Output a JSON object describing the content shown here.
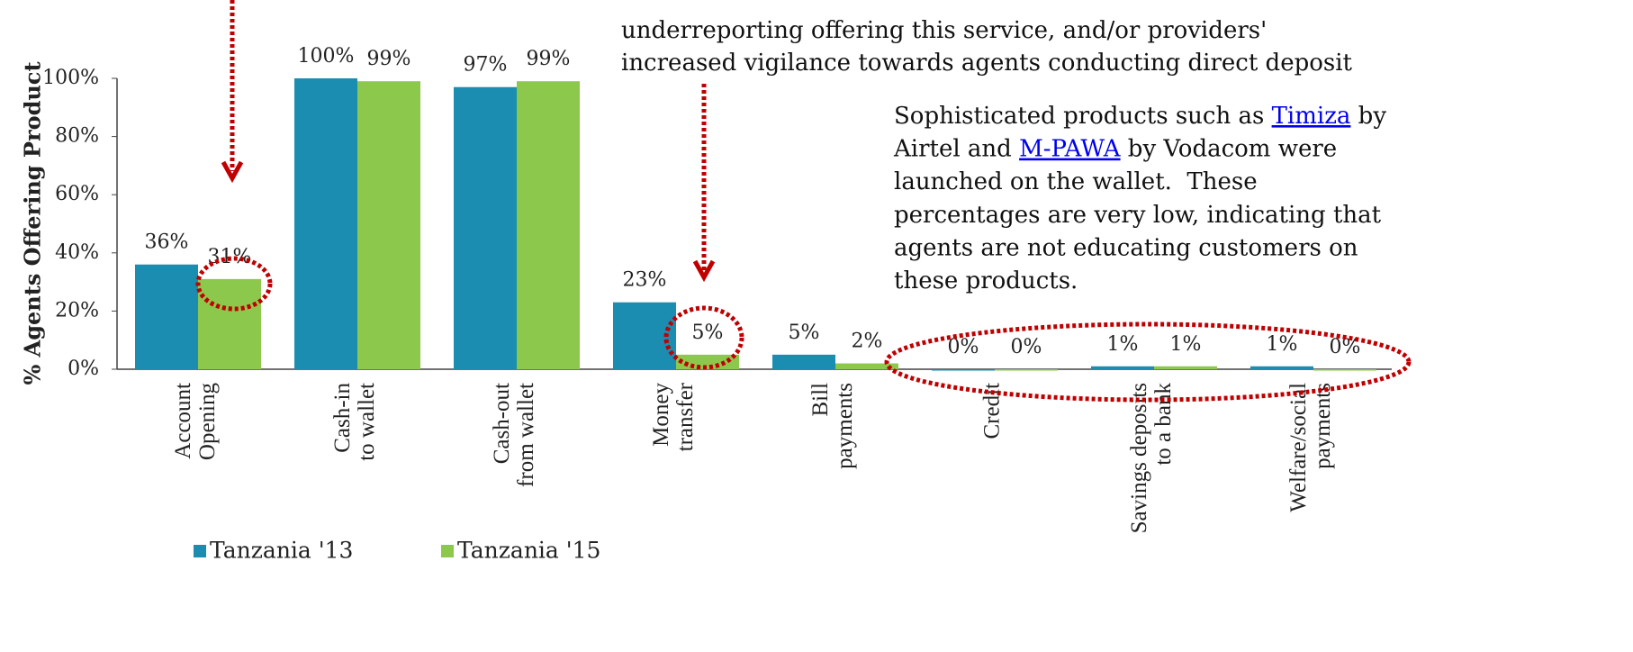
{
  "chart_data": {
    "type": "bar",
    "y_label": "% Agents Offering Product",
    "categories": [
      "Account\nOpening",
      "Cash-in\nto wallet",
      "Cash-out\nfrom wallet",
      "Money\ntransfer",
      "Bill\npayments",
      "Credit",
      "Savings deposits\nto a bank",
      "Welfare/social\npayments"
    ],
    "series": [
      {
        "name": "Tanzania '13",
        "color": "#1a8db0",
        "values": [
          36,
          100,
          97,
          23,
          5,
          0,
          1,
          1
        ],
        "value_labels": [
          "36%",
          "100%",
          "97%",
          "23%",
          "5%",
          "0%",
          "1%",
          "1%"
        ]
      },
      {
        "name": "Tanzania '15",
        "color": "#8cc84b",
        "values": [
          31,
          99,
          99,
          5,
          2,
          0,
          1,
          0
        ],
        "value_labels": [
          "31%",
          "99%",
          "99%",
          "5%",
          "2%",
          "0%",
          "1%",
          "0%"
        ]
      }
    ],
    "ylim": [
      0,
      100
    ],
    "yticks": [
      {
        "value": 0,
        "label": "0%"
      },
      {
        "value": 20,
        "label": "20%"
      },
      {
        "value": 40,
        "label": "40%"
      },
      {
        "value": 60,
        "label": "60%"
      },
      {
        "value": 80,
        "label": "80%"
      },
      {
        "value": 100,
        "label": "100%"
      }
    ],
    "legend": "bottom",
    "annotations": [
      {
        "lines": [
          [
            "underreporting offering this service, and/or providers'"
          ],
          [
            "increased vigilance towards agents conducting direct deposit"
          ]
        ]
      },
      {
        "lines": [
          [
            "Sophisticated products such as ",
            {
              "text": "Timiza",
              "link": true
            },
            " by"
          ],
          [
            "Airtel and ",
            {
              "text": "M-PAWA",
              "link": true
            },
            " by Vodacom were"
          ],
          [
            "launched on the wallet.  These"
          ],
          [
            "percentages are very low, indicating that"
          ],
          [
            "agents are not educating customers on"
          ],
          [
            "these products."
          ]
        ]
      }
    ]
  }
}
